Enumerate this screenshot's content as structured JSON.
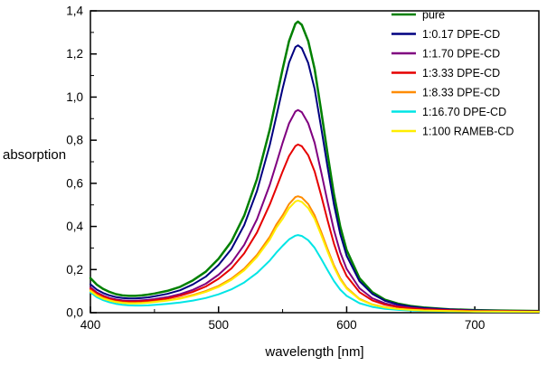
{
  "chart_data": {
    "type": "line",
    "title": "",
    "xlabel": "wavelength [nm]",
    "ylabel": "absorption",
    "xlim": [
      400,
      750
    ],
    "ylim": [
      0.0,
      1.4
    ],
    "grid": false,
    "legend_position": "top-right-inside",
    "axis_color": "#000000",
    "x_ticks": [
      {
        "v": 400,
        "label": "400"
      },
      {
        "v": 500,
        "label": "500"
      },
      {
        "v": 600,
        "label": "600"
      },
      {
        "v": 700,
        "label": "700"
      }
    ],
    "x_minor_ticks": [
      450,
      550,
      650,
      750
    ],
    "y_ticks": [
      {
        "v": 0.0,
        "label": "0,0"
      },
      {
        "v": 0.2,
        "label": "0,2"
      },
      {
        "v": 0.4,
        "label": "0,4"
      },
      {
        "v": 0.6,
        "label": "0,6"
      },
      {
        "v": 0.8,
        "label": "0,8"
      },
      {
        "v": 1.0,
        "label": "1,0"
      },
      {
        "v": 1.2,
        "label": "1,2"
      },
      {
        "v": 1.4,
        "label": "1,4"
      }
    ],
    "y_minor_ticks": [
      0.1,
      0.3,
      0.5,
      0.7,
      0.9,
      1.1,
      1.3
    ],
    "x": [
      400,
      405,
      410,
      415,
      420,
      425,
      430,
      435,
      440,
      445,
      450,
      460,
      470,
      480,
      490,
      500,
      510,
      520,
      530,
      540,
      545,
      550,
      555,
      560,
      562,
      565,
      570,
      575,
      580,
      585,
      590,
      595,
      600,
      610,
      620,
      630,
      640,
      650,
      660,
      680,
      700,
      720,
      750
    ],
    "series": [
      {
        "id": "pure",
        "name": "pure",
        "color": "#008000",
        "line_width": 2.5,
        "values": [
          0.16,
          0.13,
          0.11,
          0.096,
          0.086,
          0.08,
          0.078,
          0.078,
          0.08,
          0.084,
          0.089,
          0.101,
          0.12,
          0.15,
          0.19,
          0.25,
          0.33,
          0.45,
          0.62,
          0.85,
          0.99,
          1.13,
          1.26,
          1.34,
          1.35,
          1.335,
          1.26,
          1.13,
          0.94,
          0.74,
          0.55,
          0.4,
          0.29,
          0.16,
          0.095,
          0.06,
          0.042,
          0.031,
          0.024,
          0.016,
          0.012,
          0.01,
          0.008
        ]
      },
      {
        "id": "dpe-cd-0-17",
        "name": "1:0.17 DPE-CD",
        "color": "#000080",
        "line_width": 2,
        "values": [
          0.132,
          0.107,
          0.091,
          0.08,
          0.072,
          0.068,
          0.066,
          0.066,
          0.068,
          0.071,
          0.076,
          0.087,
          0.104,
          0.131,
          0.167,
          0.221,
          0.295,
          0.406,
          0.564,
          0.778,
          0.908,
          1.04,
          1.16,
          1.232,
          1.24,
          1.227,
          1.158,
          1.038,
          0.862,
          0.678,
          0.503,
          0.365,
          0.264,
          0.146,
          0.087,
          0.055,
          0.038,
          0.028,
          0.022,
          0.015,
          0.011,
          0.009,
          0.007
        ]
      },
      {
        "id": "dpe-cd-1-70",
        "name": "1:1.70 DPE-CD",
        "color": "#800080",
        "line_width": 2,
        "values": [
          0.118,
          0.094,
          0.079,
          0.068,
          0.061,
          0.057,
          0.055,
          0.055,
          0.057,
          0.059,
          0.063,
          0.072,
          0.086,
          0.106,
          0.134,
          0.176,
          0.231,
          0.315,
          0.433,
          0.593,
          0.69,
          0.788,
          0.878,
          0.933,
          0.94,
          0.93,
          0.878,
          0.788,
          0.655,
          0.516,
          0.384,
          0.28,
          0.203,
          0.113,
          0.067,
          0.043,
          0.03,
          0.023,
          0.018,
          0.012,
          0.009,
          0.008,
          0.006
        ]
      },
      {
        "id": "dpe-cd-3-33",
        "name": "1:3.33 DPE-CD",
        "color": "#e60000",
        "line_width": 2,
        "values": [
          0.112,
          0.089,
          0.075,
          0.064,
          0.057,
          0.053,
          0.051,
          0.051,
          0.053,
          0.055,
          0.058,
          0.066,
          0.079,
          0.097,
          0.121,
          0.157,
          0.205,
          0.275,
          0.372,
          0.502,
          0.578,
          0.655,
          0.727,
          0.773,
          0.78,
          0.772,
          0.73,
          0.655,
          0.546,
          0.43,
          0.321,
          0.234,
          0.17,
          0.095,
          0.057,
          0.037,
          0.026,
          0.02,
          0.016,
          0.011,
          0.008,
          0.007,
          0.006
        ]
      },
      {
        "id": "dpe-cd-8-33",
        "name": "1:8.33 DPE-CD",
        "color": "#ff8c00",
        "line_width": 2,
        "values": [
          0.104,
          0.082,
          0.068,
          0.058,
          0.051,
          0.047,
          0.045,
          0.045,
          0.046,
          0.048,
          0.051,
          0.058,
          0.068,
          0.082,
          0.1,
          0.124,
          0.158,
          0.204,
          0.268,
          0.352,
          0.408,
          0.452,
          0.504,
          0.536,
          0.54,
          0.534,
          0.504,
          0.452,
          0.376,
          0.296,
          0.22,
          0.16,
          0.116,
          0.064,
          0.038,
          0.025,
          0.018,
          0.014,
          0.011,
          0.008,
          0.006,
          0.005,
          0.004
        ]
      },
      {
        "id": "dpe-cd-16-70",
        "name": "1:16.70 DPE-CD",
        "color": "#00e5e5",
        "line_width": 2,
        "values": [
          0.094,
          0.072,
          0.058,
          0.048,
          0.041,
          0.037,
          0.034,
          0.033,
          0.033,
          0.034,
          0.036,
          0.041,
          0.047,
          0.056,
          0.068,
          0.085,
          0.108,
          0.14,
          0.184,
          0.242,
          0.278,
          0.31,
          0.34,
          0.357,
          0.36,
          0.356,
          0.336,
          0.301,
          0.251,
          0.198,
          0.147,
          0.107,
          0.078,
          0.044,
          0.027,
          0.018,
          0.013,
          0.01,
          0.008,
          0.006,
          0.005,
          0.004,
          0.004
        ]
      },
      {
        "id": "rameb-cd-100",
        "name": "1:100 RAMEB-CD",
        "color": "#ffee00",
        "line_width": 2,
        "values": [
          0.1,
          0.079,
          0.065,
          0.056,
          0.049,
          0.045,
          0.043,
          0.043,
          0.044,
          0.046,
          0.049,
          0.056,
          0.065,
          0.079,
          0.096,
          0.119,
          0.152,
          0.196,
          0.258,
          0.339,
          0.393,
          0.435,
          0.485,
          0.516,
          0.52,
          0.514,
          0.485,
          0.435,
          0.362,
          0.285,
          0.212,
          0.154,
          0.112,
          0.062,
          0.037,
          0.024,
          0.017,
          0.013,
          0.01,
          0.007,
          0.006,
          0.005,
          0.004
        ]
      }
    ]
  }
}
